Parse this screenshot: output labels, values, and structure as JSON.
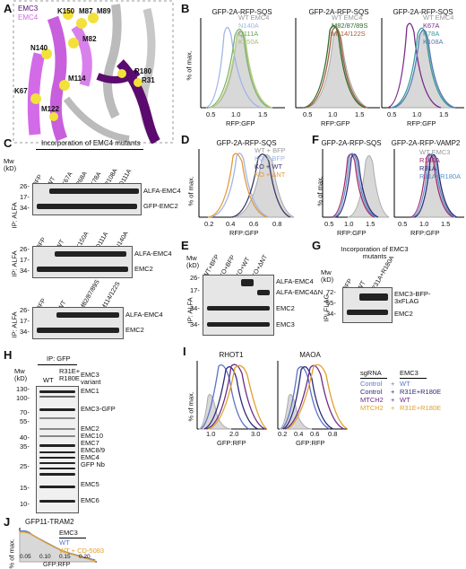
{
  "panels": {
    "A": {
      "label": "A",
      "legend": [
        "EMC3",
        "EMC4"
      ],
      "residues": [
        "K150",
        "M87",
        "M89",
        "M82",
        "N140",
        "M114",
        "K67",
        "M122",
        "R180",
        "R31"
      ]
    },
    "B": {
      "label": "B",
      "plots": [
        {
          "title": "GFP-2A-RFP-SQS",
          "legend": [
            "WT EMC4",
            "N140A",
            "Q111A",
            "K150A"
          ]
        },
        {
          "title": "GFP-2A-RFP-SQS",
          "legend": [
            "WT EMC4",
            "M82/87/89S",
            "M114/122S"
          ]
        },
        {
          "title": "GFP-2A-RFP-SQS",
          "legend": [
            "WT EMC4",
            "K67A",
            "K78A",
            "K108A"
          ]
        }
      ],
      "ylabel": "% of max.",
      "xlabel": "RFP:GFP",
      "ticks": [
        "0.5",
        "1.0",
        "1.5"
      ]
    },
    "C": {
      "label": "C",
      "header": "Incorporation of EMC4 mutants",
      "mw": "Mw (kD)",
      "ip": "IP: ALFA",
      "blot1": {
        "lanes": [
          "BFP",
          "WT",
          "K67A",
          "R68A",
          "K78A",
          "R108A",
          "Q111A"
        ],
        "markers": [
          "26-",
          "17-",
          "34-"
        ],
        "bands": [
          "ALFA-EMC4",
          "GFP-EMC2"
        ]
      },
      "blot2": {
        "lanes": [
          "BFP",
          "WT",
          "K150A",
          "Q111A",
          "N140A"
        ],
        "markers": [
          "26-",
          "17-",
          "34-"
        ],
        "bands": [
          "ALFA-EMC4",
          "EMC2"
        ]
      },
      "blot3": {
        "lanes": [
          "BFP",
          "WT",
          "M82/87/89S",
          "M114/122S"
        ],
        "markers": [
          "26-",
          "17-",
          "34-"
        ],
        "bands": [
          "ALFA-EMC4",
          "EMC2"
        ]
      }
    },
    "D": {
      "label": "D",
      "title": "GFP-2A-RFP-SQS",
      "legend": [
        "WT + BFP",
        "KO + BFP",
        "KO + WT",
        "KO + ΔNT"
      ],
      "xlabel": "RFP:GFP",
      "ylabel": "% of max.",
      "ticks": [
        "0.2",
        "0.4",
        "0.6",
        "0.8"
      ]
    },
    "E": {
      "label": "E",
      "mw": "Mw (kD)",
      "ip": "IP: ALFA",
      "lanes": [
        "WT+BFP",
        "KO+BFP",
        "KO+WT",
        "KO+ΔNT"
      ],
      "markers": [
        "26-",
        "17-",
        "34-",
        "34-"
      ],
      "bands": [
        "ALFA-EMC4",
        "ALFA-EMC4ΔN",
        "EMC2",
        "EMC3"
      ]
    },
    "F": {
      "label": "F",
      "plots": [
        {
          "title": "GFP-2A-RFP-SQS",
          "ticks": [
            "0.5",
            "1.0",
            "1.5"
          ]
        },
        {
          "title": "GFP-2A-RFP-VAMP2",
          "legend": [
            "WT EMC3",
            "R180A",
            "R31A",
            "R31A+R180A"
          ],
          "ticks": [
            "0.5",
            "1.0",
            "1.5"
          ]
        }
      ],
      "xlabel": "RFP:GFP",
      "ylabel": "% of max."
    },
    "G": {
      "label": "G",
      "header": "Incorporation of EMC3 mutants",
      "mw": "Mw (kD)",
      "ip": "IP: FLAG",
      "lanes": [
        "BFP",
        "WT",
        "R31A+R180A"
      ],
      "markers": [
        "72-",
        "55-",
        "34-"
      ],
      "bands": [
        "EMC3-BFP-3xFLAG",
        "EMC2"
      ]
    },
    "H": {
      "label": "H",
      "header": "IP: GFP",
      "mw": "Mw (kD)",
      "variant": "EMC3 variant",
      "lanes": [
        "WT",
        "R31E+ R180E"
      ],
      "markers": [
        "130-",
        "100-",
        "70-",
        "55-",
        "40-",
        "35-",
        "25-",
        "15-",
        "10-"
      ],
      "bands": [
        "EMC1",
        "EMC3-GFP",
        "EMC2",
        "EMC10",
        "EMC7",
        "EMC8/9",
        "EMC4",
        "GFP Nb",
        "EMC5",
        "EMC6"
      ]
    },
    "I": {
      "label": "I",
      "plots": [
        {
          "title": "RHOT1",
          "ticks": [
            "1.0",
            "2.0",
            "3.0"
          ]
        },
        {
          "title": "MAOA",
          "ticks": [
            "0.2",
            "0.4",
            "0.6",
            "0.8"
          ]
        }
      ],
      "xlabel": "GFP:RFP",
      "ylabel": "% of max.",
      "legend_headers": [
        "sgRNA",
        "EMC3"
      ],
      "legend": [
        [
          "Control",
          "+",
          "WT"
        ],
        [
          "Control",
          "+",
          "R31E+R180E"
        ],
        [
          "MTCH2",
          "+",
          "WT"
        ],
        [
          "MTCH2",
          "+",
          "R31E+R180E"
        ]
      ]
    },
    "J": {
      "label": "J",
      "title": "GFP11-TRAM2",
      "legend_header": "EMC3",
      "legend": [
        "WT",
        "WT + CD-5083"
      ],
      "xlabel": "GFP:RFP",
      "ylabel": "% of max.",
      "ticks": [
        "0.05",
        "0.10",
        "0.15",
        "0.20"
      ]
    }
  },
  "colors": {
    "emc3": "#5b0a6e",
    "emc4": "#d36be8",
    "gray": "#c8c8c8",
    "blue": "#5b74c7",
    "orange": "#e59a3a",
    "navy": "#2b2b7a",
    "gold": "#e0a02a",
    "purple": "#6b2a8a",
    "teal": "#3a9a9a",
    "red": "#a3296b"
  }
}
